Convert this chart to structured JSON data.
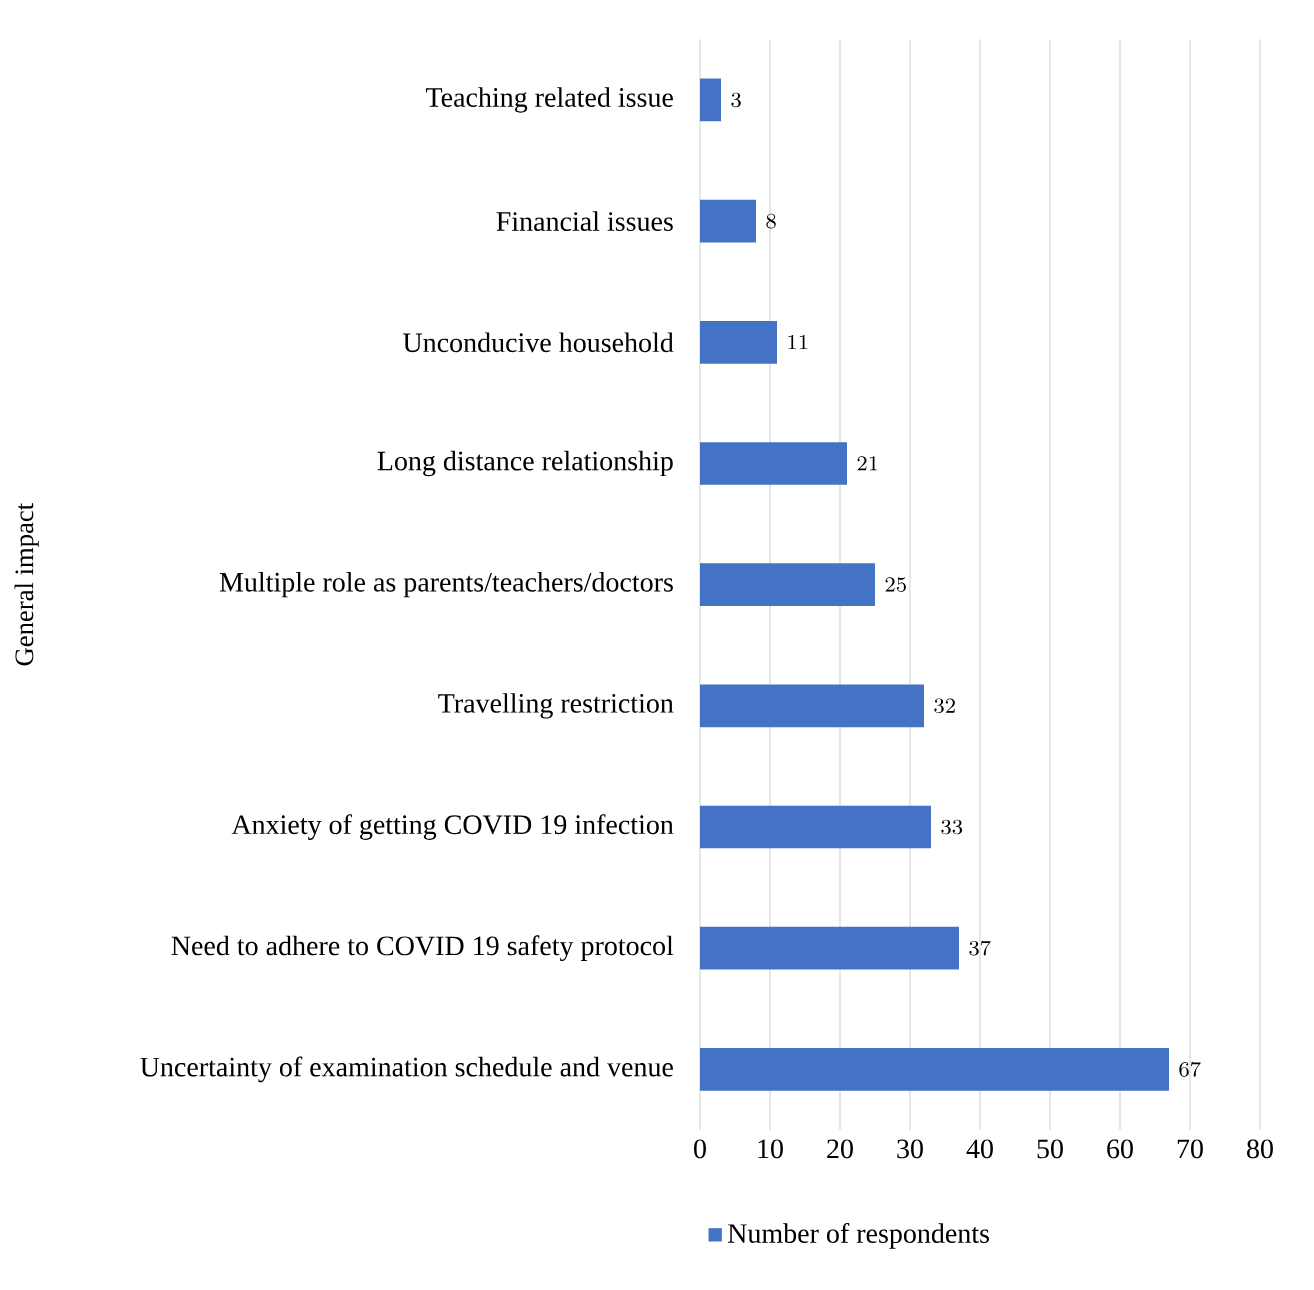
{
  "chart_data": {
    "type": "bar",
    "orientation": "horizontal",
    "ylabel": "General impact",
    "categories": [
      "Teaching related issue",
      "Financial issues",
      "Unconducive household",
      "Long distance relationship",
      "Multiple role as parents/teachers/doctors",
      "Travelling restriction",
      "Anxiety of getting COVID 19 infection",
      "Need to adhere to COVID 19 safety protocol",
      "Uncertainty of examination schedule and venue"
    ],
    "series": [
      {
        "name": "Number of respondents",
        "color": "#4472c4",
        "values": [
          3,
          8,
          11,
          21,
          25,
          32,
          33,
          37,
          67
        ]
      }
    ],
    "xlim": [
      0,
      80
    ],
    "xticks": [
      0,
      10,
      20,
      30,
      40,
      50,
      60,
      70,
      80
    ],
    "grid": "x",
    "legend": "bottom",
    "data_labels": true
  }
}
